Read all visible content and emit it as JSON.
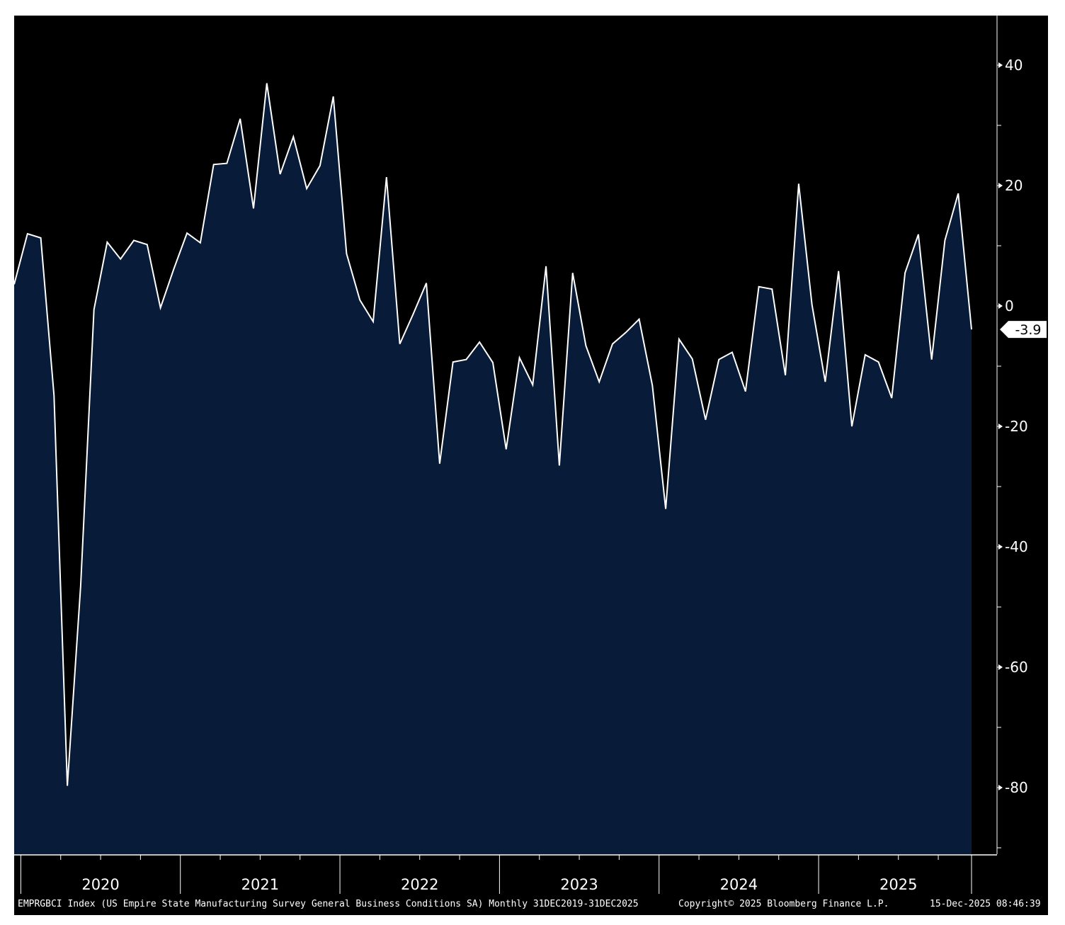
{
  "chart_data": {
    "type": "area",
    "title": "",
    "xlabel": "",
    "ylabel": "",
    "ylim": [
      -90,
      48
    ],
    "yticks": [
      40,
      20,
      0,
      -20,
      -40,
      -60,
      -80
    ],
    "x_year_labels": [
      "2020",
      "2021",
      "2022",
      "2023",
      "2024",
      "2025"
    ],
    "x": [
      "2019-12",
      "2020-01",
      "2020-02",
      "2020-03",
      "2020-04",
      "2020-05",
      "2020-06",
      "2020-07",
      "2020-08",
      "2020-09",
      "2020-10",
      "2020-11",
      "2020-12",
      "2021-01",
      "2021-02",
      "2021-03",
      "2021-04",
      "2021-05",
      "2021-06",
      "2021-07",
      "2021-08",
      "2021-09",
      "2021-10",
      "2021-11",
      "2021-12",
      "2022-01",
      "2022-02",
      "2022-03",
      "2022-04",
      "2022-05",
      "2022-06",
      "2022-07",
      "2022-08",
      "2022-09",
      "2022-10",
      "2022-11",
      "2022-12",
      "2023-01",
      "2023-02",
      "2023-03",
      "2023-04",
      "2023-05",
      "2023-06",
      "2023-07",
      "2023-08",
      "2023-09",
      "2023-10",
      "2023-11",
      "2023-12",
      "2024-01",
      "2024-02",
      "2024-03",
      "2024-04",
      "2024-05",
      "2024-06",
      "2024-07",
      "2024-08",
      "2024-09",
      "2024-10",
      "2024-11",
      "2024-12",
      "2025-01",
      "2025-02",
      "2025-03",
      "2025-04",
      "2025-05",
      "2025-06",
      "2025-07",
      "2025-08",
      "2025-09",
      "2025-10",
      "2025-11",
      "2025-12"
    ],
    "series": [
      {
        "name": "",
        "values": [
          3.6,
          12.0,
          11.3,
          -14.9,
          -79.7,
          -46.5,
          -0.6,
          10.6,
          7.8,
          10.9,
          10.2,
          -0.3,
          6.1,
          12.1,
          10.5,
          23.5,
          23.7,
          31.1,
          16.2,
          37.0,
          21.9,
          28.1,
          19.5,
          23.3,
          34.8,
          8.7,
          1.0,
          -2.6,
          21.4,
          -6.3,
          -1.4,
          3.8,
          -26.2,
          -9.3,
          -8.9,
          -6.0,
          -9.4,
          -23.8,
          -8.6,
          -13.1,
          6.6,
          -26.5,
          5.5,
          -6.6,
          -12.6,
          -6.3,
          -4.4,
          -2.2,
          -13.2,
          -33.7,
          -5.5,
          -8.8,
          -18.9,
          -8.9,
          -7.7,
          -14.2,
          3.2,
          2.8,
          -11.5,
          20.3,
          0.2,
          -12.6,
          5.8,
          -20.0,
          -8.1,
          -9.3,
          -15.3,
          5.5,
          11.9,
          -8.9,
          10.9,
          18.7,
          -3.9
        ]
      }
    ],
    "last_value_label": "-3.9",
    "colors": {
      "background": "#000000",
      "fill": "#081c3a",
      "line": "#ffffff",
      "axis": "#ffffff"
    }
  },
  "footer": {
    "description": "EMPRGBCI Index (US Empire State Manufacturing Survey General Business Conditions SA) Monthly 31DEC2019-31DEC2025",
    "copyright": "Copyright© 2025 Bloomberg Finance L.P.",
    "timestamp": "15-Dec-2025 08:46:39"
  }
}
